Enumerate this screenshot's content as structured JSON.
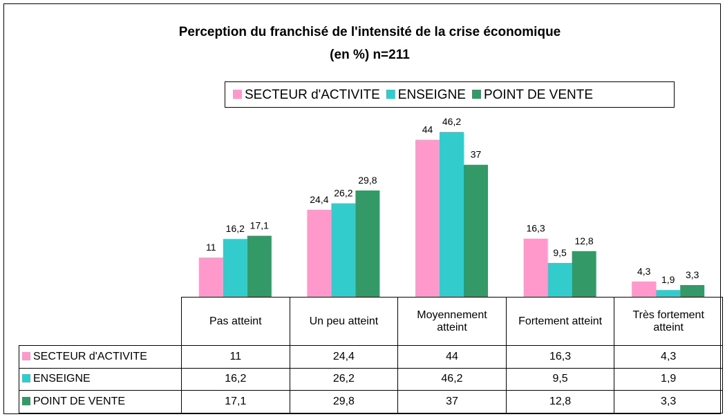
{
  "chart_data": {
    "type": "bar",
    "title": "Perception du franchisé de l'intensité de la crise économique",
    "subtitle": "(en %) n=211",
    "categories": [
      "Pas atteint",
      "Un peu atteint",
      "Moyennement atteint",
      "Fortement atteint",
      "Très fortement atteint"
    ],
    "series": [
      {
        "name": "SECTEUR d'ACTIVITE",
        "color": "#ff99cc",
        "values": [
          11,
          24.4,
          44,
          16.3,
          4.3
        ],
        "value_labels": [
          "11",
          "24,4",
          "44",
          "16,3",
          "4,3"
        ]
      },
      {
        "name": "ENSEIGNE",
        "color": "#33cccc",
        "values": [
          16.2,
          26.2,
          46.2,
          9.5,
          1.9
        ],
        "value_labels": [
          "16,2",
          "26,2",
          "46,2",
          "9,5",
          "1,9"
        ]
      },
      {
        "name": "POINT DE VENTE",
        "color": "#339966",
        "values": [
          17.1,
          29.8,
          37,
          12.8,
          3.3
        ],
        "value_labels": [
          "17,1",
          "29,8",
          "37",
          "12,8",
          "3,3"
        ]
      }
    ],
    "legend": "top"
  }
}
